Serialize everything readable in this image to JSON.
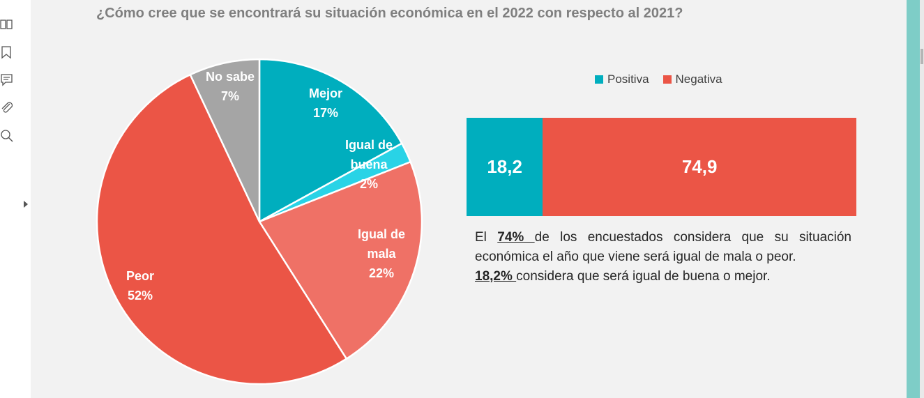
{
  "page": {
    "title": "¿Cómo cree que se encontrará su situación económica en el 2022 con respecto al 2021?"
  },
  "sidebar": {
    "tools": [
      {
        "name": "thumbnails-icon"
      },
      {
        "name": "bookmark-icon"
      },
      {
        "name": "comment-icon"
      },
      {
        "name": "attachment-icon"
      },
      {
        "name": "search-icon"
      }
    ]
  },
  "chart_data": [
    {
      "type": "pie",
      "title": "",
      "unit": "%",
      "start_angle_deg": 0,
      "slices": [
        {
          "label_lines": [
            "Mejor",
            "17%"
          ],
          "value": 17,
          "color": "#00aebe"
        },
        {
          "label_lines": [
            "Igual de",
            "buena",
            "2%"
          ],
          "value": 2,
          "color": "#29d3e6"
        },
        {
          "label_lines": [
            "Igual de",
            "mala",
            "22%"
          ],
          "value": 22,
          "color": "#ef7166"
        },
        {
          "label_lines": [
            "Peor",
            "52%"
          ],
          "value": 52,
          "color": "#eb5546"
        },
        {
          "label_lines": [
            "No sabe",
            "7%"
          ],
          "value": 7,
          "color": "#a5a5a5"
        }
      ]
    },
    {
      "type": "bar",
      "orientation": "horizontal",
      "stacked": true,
      "legend_position": "top",
      "series": [
        {
          "name": "Positiva",
          "value": 18.2,
          "value_label": "18,2",
          "color": "#00aebe"
        },
        {
          "name": "Negativa",
          "value": 74.9,
          "value_label": "74,9",
          "color": "#eb5546"
        }
      ]
    }
  ],
  "description": {
    "part1_pre": "El ",
    "part1_highlight": "74% ",
    "part1_post": "de los encuestados considera que su situación económica el año que viene será igual de mala o peor.",
    "part2_highlight": "18,2% ",
    "part2_post": "considera que será igual de buena o mejor."
  }
}
